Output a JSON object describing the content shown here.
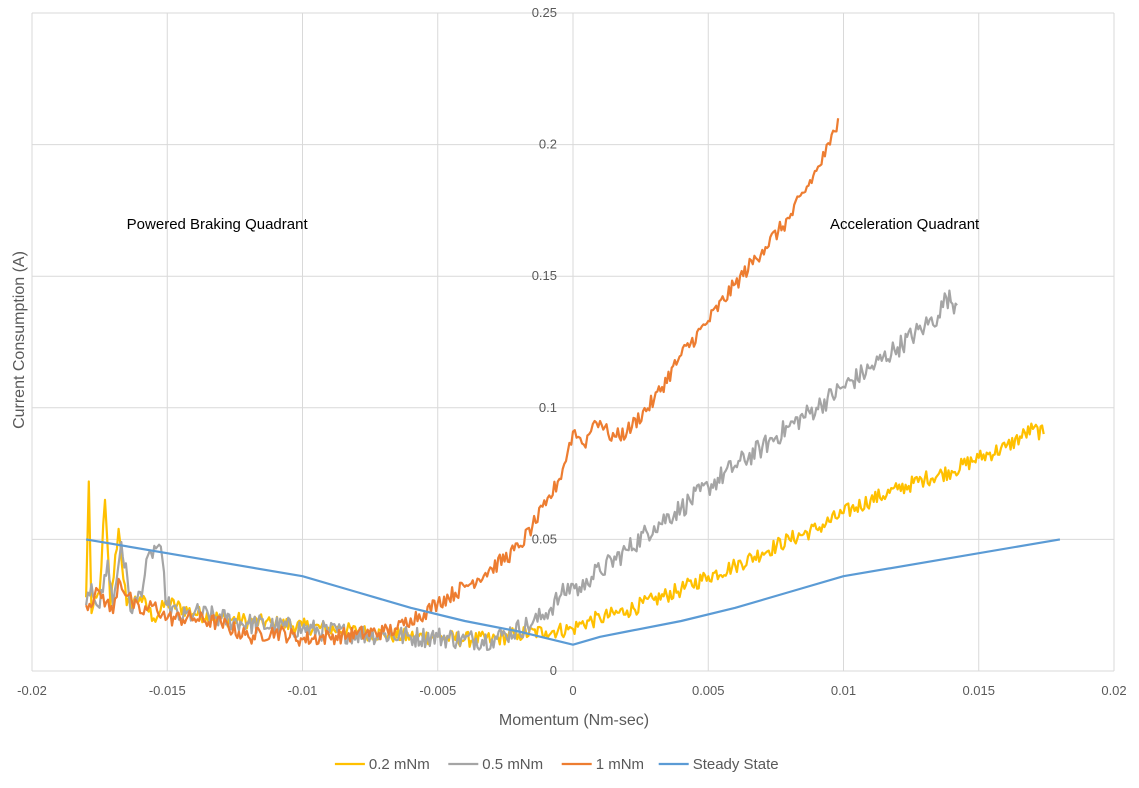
{
  "chart_data": {
    "type": "line",
    "title": "",
    "xlabel": "Momentum (Nm-sec)",
    "ylabel": "Current Consumption (A)",
    "xlim": [
      -0.02,
      0.02
    ],
    "ylim": [
      0,
      0.25
    ],
    "x_ticks": [
      -0.02,
      -0.015,
      -0.01,
      -0.005,
      0,
      0.005,
      0.01,
      0.015,
      0.02
    ],
    "y_ticks": [
      0,
      0.05,
      0.1,
      0.15,
      0.2,
      0.25
    ],
    "x_tick_labels": [
      "-0.02",
      "-0.015",
      "-0.01",
      "-0.005",
      "0",
      "0.005",
      "0.01",
      "0.015",
      "0.02"
    ],
    "y_tick_labels": [
      "0",
      "0.05",
      "0.1",
      "0.15",
      "0.2",
      "0.25"
    ],
    "grid": true,
    "legend_position": "bottom",
    "annotations": [
      {
        "text": "Powered Braking Quadrant",
        "x": -0.0165,
        "y": 0.168
      },
      {
        "text": "Acceleration Quadrant",
        "x": 0.0095,
        "y": 0.168
      }
    ],
    "series": [
      {
        "name": "0.2 mNm",
        "color": "#FFC000",
        "noise": 0.003,
        "points": [
          [
            -0.018,
            0.028
          ],
          [
            -0.0179,
            0.072
          ],
          [
            -0.0178,
            0.022
          ],
          [
            -0.0175,
            0.03
          ],
          [
            -0.0173,
            0.065
          ],
          [
            -0.0171,
            0.025
          ],
          [
            -0.0168,
            0.054
          ],
          [
            -0.0165,
            0.025
          ],
          [
            -0.016,
            0.028
          ],
          [
            -0.0155,
            0.02
          ],
          [
            -0.015,
            0.026
          ],
          [
            -0.014,
            0.022
          ],
          [
            -0.013,
            0.02
          ],
          [
            -0.012,
            0.019
          ],
          [
            -0.011,
            0.018
          ],
          [
            -0.01,
            0.017
          ],
          [
            -0.009,
            0.016
          ],
          [
            -0.008,
            0.015
          ],
          [
            -0.007,
            0.014
          ],
          [
            -0.006,
            0.013
          ],
          [
            -0.005,
            0.013
          ],
          [
            -0.004,
            0.012
          ],
          [
            -0.003,
            0.012
          ],
          [
            -0.002,
            0.014
          ],
          [
            -0.001,
            0.015
          ],
          [
            0,
            0.016
          ],
          [
            0.0003,
            0.018
          ],
          [
            0.001,
            0.02
          ],
          [
            0.002,
            0.023
          ],
          [
            0.003,
            0.027
          ],
          [
            0.004,
            0.031
          ],
          [
            0.005,
            0.036
          ],
          [
            0.006,
            0.04
          ],
          [
            0.007,
            0.045
          ],
          [
            0.008,
            0.05
          ],
          [
            0.009,
            0.054
          ],
          [
            0.01,
            0.06
          ],
          [
            0.011,
            0.065
          ],
          [
            0.012,
            0.069
          ],
          [
            0.013,
            0.073
          ],
          [
            0.014,
            0.076
          ],
          [
            0.015,
            0.081
          ],
          [
            0.016,
            0.085
          ],
          [
            0.017,
            0.092
          ],
          [
            0.0174,
            0.09
          ]
        ]
      },
      {
        "name": "0.5 mNm",
        "color": "#A5A5A5",
        "noise": 0.004,
        "points": [
          [
            -0.018,
            0.025
          ],
          [
            -0.0178,
            0.033
          ],
          [
            -0.0175,
            0.024
          ],
          [
            -0.0172,
            0.042
          ],
          [
            -0.017,
            0.025
          ],
          [
            -0.0167,
            0.049
          ],
          [
            -0.0163,
            0.022
          ],
          [
            -0.016,
            0.03
          ],
          [
            -0.0156,
            0.045
          ],
          [
            -0.0153,
            0.048
          ],
          [
            -0.015,
            0.025
          ],
          [
            -0.0145,
            0.02
          ],
          [
            -0.014,
            0.022
          ],
          [
            -0.013,
            0.02
          ],
          [
            -0.012,
            0.018
          ],
          [
            -0.011,
            0.017
          ],
          [
            -0.01,
            0.016
          ],
          [
            -0.009,
            0.015
          ],
          [
            -0.008,
            0.014
          ],
          [
            -0.007,
            0.014
          ],
          [
            -0.006,
            0.013
          ],
          [
            -0.005,
            0.013
          ],
          [
            -0.004,
            0.012
          ],
          [
            -0.003,
            0.012
          ],
          [
            -0.0025,
            0.014
          ],
          [
            -0.0015,
            0.018
          ],
          [
            -0.001,
            0.022
          ],
          [
            -0.0005,
            0.028
          ],
          [
            0,
            0.033
          ],
          [
            0.0003,
            0.03
          ],
          [
            0.0005,
            0.035
          ],
          [
            0.001,
            0.038
          ],
          [
            0.002,
            0.046
          ],
          [
            0.003,
            0.055
          ],
          [
            0.004,
            0.062
          ],
          [
            0.005,
            0.07
          ],
          [
            0.006,
            0.078
          ],
          [
            0.007,
            0.085
          ],
          [
            0.008,
            0.093
          ],
          [
            0.009,
            0.1
          ],
          [
            0.01,
            0.108
          ],
          [
            0.011,
            0.115
          ],
          [
            0.012,
            0.123
          ],
          [
            0.013,
            0.131
          ],
          [
            0.0135,
            0.135
          ],
          [
            0.0138,
            0.142
          ],
          [
            0.0142,
            0.139
          ]
        ]
      },
      {
        "name": "1 mNm",
        "color": "#ED7D31",
        "noise": 0.003,
        "points": [
          [
            -0.018,
            0.025
          ],
          [
            -0.0175,
            0.03
          ],
          [
            -0.017,
            0.022
          ],
          [
            -0.0168,
            0.035
          ],
          [
            -0.0163,
            0.026
          ],
          [
            -0.016,
            0.022
          ],
          [
            -0.0155,
            0.025
          ],
          [
            -0.015,
            0.02
          ],
          [
            -0.014,
            0.02
          ],
          [
            -0.013,
            0.018
          ],
          [
            -0.012,
            0.013
          ],
          [
            -0.011,
            0.015
          ],
          [
            -0.01,
            0.012
          ],
          [
            -0.009,
            0.013
          ],
          [
            -0.008,
            0.014
          ],
          [
            -0.007,
            0.015
          ],
          [
            -0.0065,
            0.016
          ],
          [
            -0.006,
            0.02
          ],
          [
            -0.0055,
            0.022
          ],
          [
            -0.005,
            0.026
          ],
          [
            -0.004,
            0.032
          ],
          [
            -0.003,
            0.039
          ],
          [
            -0.002,
            0.047
          ],
          [
            -0.0015,
            0.055
          ],
          [
            -0.001,
            0.063
          ],
          [
            -0.0005,
            0.073
          ],
          [
            -0.0002,
            0.083
          ],
          [
            0,
            0.091
          ],
          [
            0.0002,
            0.089
          ],
          [
            0.0004,
            0.086
          ],
          [
            0.0006,
            0.09
          ],
          [
            0.0008,
            0.095
          ],
          [
            0.001,
            0.095
          ],
          [
            0.0013,
            0.09
          ],
          [
            0.0016,
            0.089
          ],
          [
            0.002,
            0.091
          ],
          [
            0.003,
            0.103
          ],
          [
            0.004,
            0.12
          ],
          [
            0.005,
            0.133
          ],
          [
            0.006,
            0.147
          ],
          [
            0.007,
            0.16
          ],
          [
            0.008,
            0.172
          ],
          [
            0.009,
            0.19
          ],
          [
            0.0095,
            0.2
          ],
          [
            0.0098,
            0.21
          ]
        ]
      },
      {
        "name": "Steady State",
        "color": "#5B9BD5",
        "noise": 0,
        "points": [
          [
            -0.018,
            0.05
          ],
          [
            -0.014,
            0.043
          ],
          [
            -0.01,
            0.036
          ],
          [
            -0.008,
            0.03
          ],
          [
            -0.006,
            0.024
          ],
          [
            -0.004,
            0.019
          ],
          [
            -0.002,
            0.015
          ],
          [
            0,
            0.01
          ],
          [
            0.001,
            0.013
          ],
          [
            0.002,
            0.015
          ],
          [
            0.004,
            0.019
          ],
          [
            0.006,
            0.024
          ],
          [
            0.008,
            0.03
          ],
          [
            0.01,
            0.036
          ],
          [
            0.014,
            0.043
          ],
          [
            0.018,
            0.05
          ]
        ]
      }
    ]
  }
}
